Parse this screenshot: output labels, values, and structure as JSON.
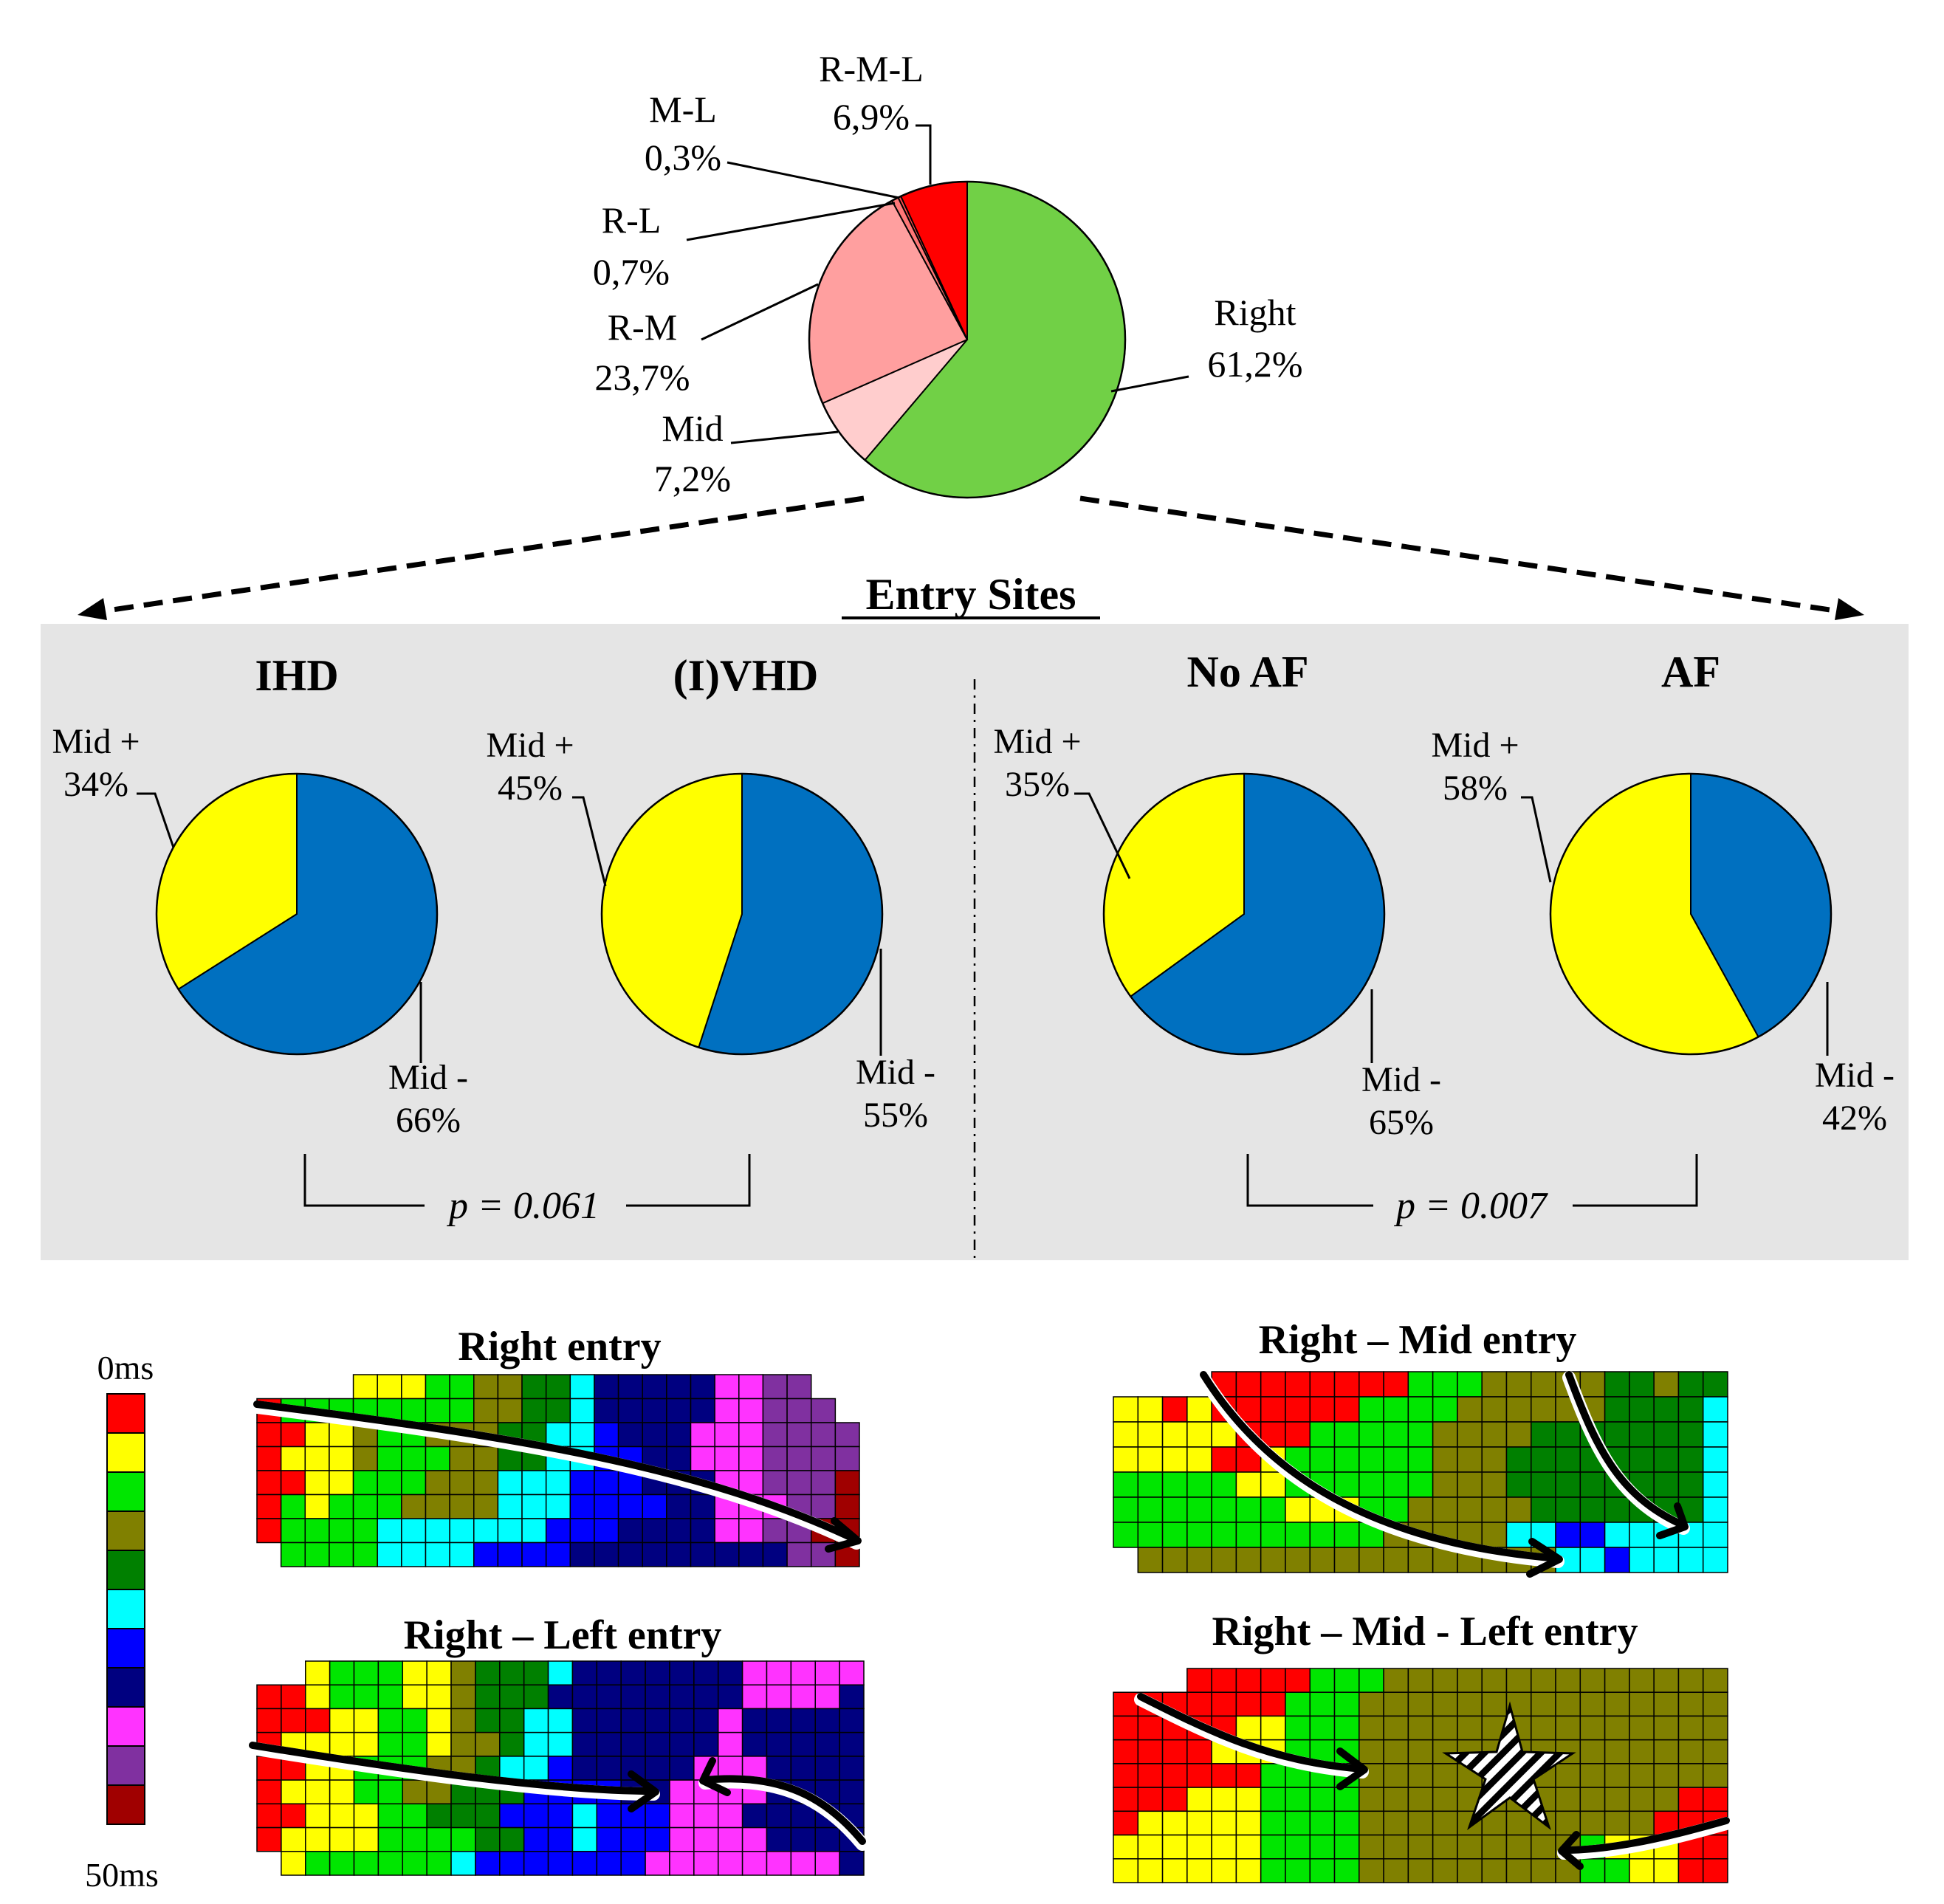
{
  "chart_data": [
    {
      "type": "pie",
      "name": "entry-site-distribution",
      "title": "",
      "slices": [
        {
          "label": "Right",
          "value": 61.2,
          "display": "61,2%",
          "color": "#71d046"
        },
        {
          "label": "Mid",
          "value": 7.2,
          "display": "7,2%",
          "color": "#ffcdcd"
        },
        {
          "label": "R-M",
          "value": 23.7,
          "display": "23,7%",
          "color": "#ff9f9f"
        },
        {
          "label": "R-L",
          "value": 0.7,
          "display": "0,7%",
          "color": "#ff7777"
        },
        {
          "label": "M-L",
          "value": 0.3,
          "display": "0,3%",
          "color": "#ff4d4d"
        },
        {
          "label": "R-M-L",
          "value": 6.9,
          "display": "6,9%",
          "color": "#ff0000"
        }
      ]
    },
    {
      "type": "pie",
      "name": "ihd",
      "title": "IHD",
      "slices": [
        {
          "label": "Mid -",
          "value": 66,
          "display": "66%",
          "color": "#0070c0"
        },
        {
          "label": "Mid +",
          "value": 34,
          "display": "34%",
          "color": "#ffff00"
        }
      ]
    },
    {
      "type": "pie",
      "name": "ivhd",
      "title": "(I)VHD",
      "slices": [
        {
          "label": "Mid -",
          "value": 55,
          "display": "55%",
          "color": "#0070c0"
        },
        {
          "label": "Mid +",
          "value": 45,
          "display": "45%",
          "color": "#ffff00"
        }
      ]
    },
    {
      "type": "pie",
      "name": "no-af",
      "title": "No AF",
      "slices": [
        {
          "label": "Mid -",
          "value": 65,
          "display": "65%",
          "color": "#0070c0"
        },
        {
          "label": "Mid +",
          "value": 35,
          "display": "35%",
          "color": "#ffff00"
        }
      ]
    },
    {
      "type": "pie",
      "name": "af",
      "title": "AF",
      "slices": [
        {
          "label": "Mid -",
          "value": 42,
          "display": "42%",
          "color": "#0070c0"
        },
        {
          "label": "Mid +",
          "value": 58,
          "display": "58%",
          "color": "#ffff00"
        }
      ]
    }
  ],
  "section_title": "Entry Sites",
  "p_values": {
    "etiology": "p = 0.061",
    "af": "p = 0.007"
  },
  "activation_scale": {
    "top_label": "0ms",
    "bottom_label": "50ms",
    "colors": [
      "#ff0000",
      "#ffff00",
      "#00e600",
      "#808000",
      "#008000",
      "#00ffff",
      "#0000ff",
      "#000080",
      "#ff33ff",
      "#8030a0",
      "#a00000"
    ]
  },
  "maps": [
    {
      "title": "Right entry"
    },
    {
      "title": "Right – Mid  entry"
    },
    {
      "title": "Right – Left entry"
    },
    {
      "title": "Right – Mid  - Left entry"
    }
  ],
  "colors": {
    "panel": "#e5e5e5",
    "outline": "#000000"
  }
}
